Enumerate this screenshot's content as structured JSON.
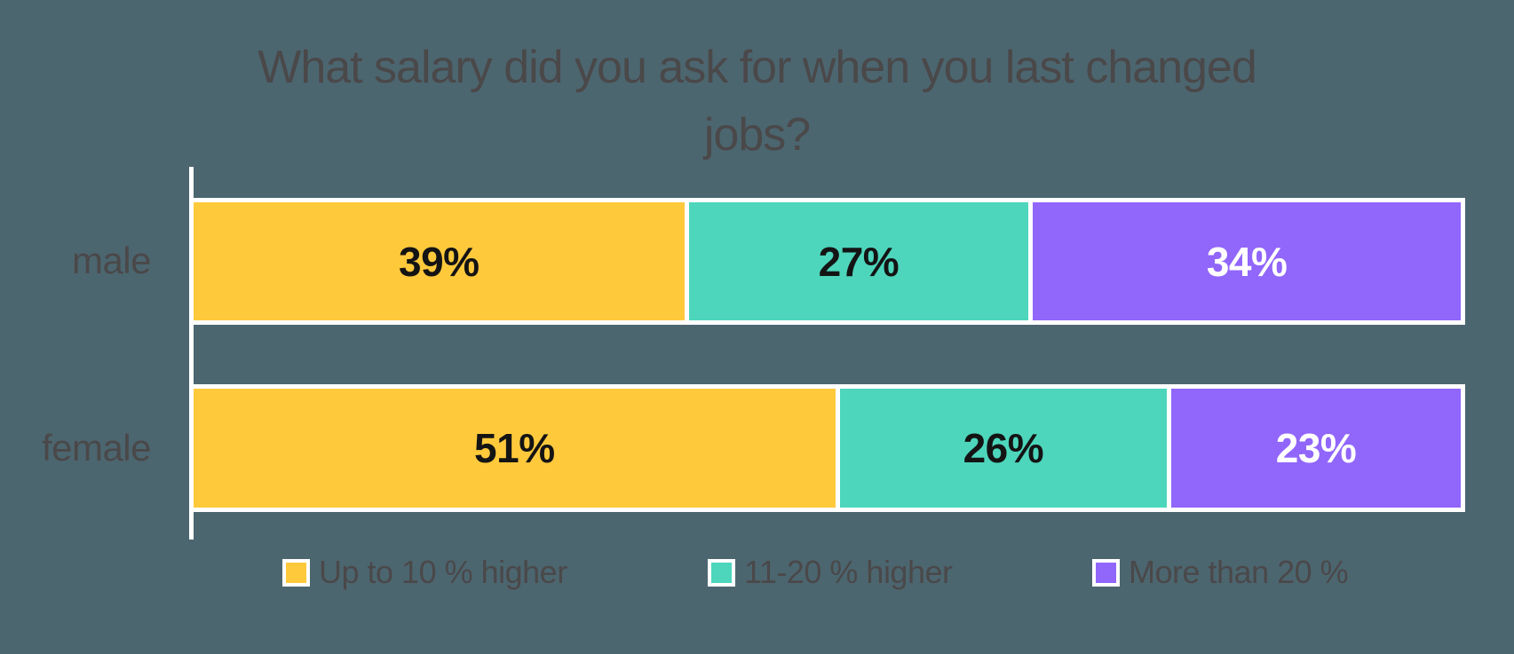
{
  "background_color": "#4C6670",
  "text_color": "#4A4849",
  "title": {
    "line1": "What salary did you ask for when you last changed",
    "line2": "jobs?"
  },
  "chart_data": {
    "type": "bar",
    "stacked": true,
    "orientation": "horizontal",
    "title": "What salary did you ask for when you last changed jobs?",
    "categories": [
      "male",
      "female"
    ],
    "series": [
      {
        "name": "Up to 10 % higher",
        "color": "#FFC93C",
        "label_color": "#141414",
        "values": [
          39,
          51
        ]
      },
      {
        "name": "11-20 % higher",
        "color": "#4DD6BC",
        "label_color": "#141414",
        "values": [
          27,
          26
        ]
      },
      {
        "name": "More than 20 %",
        "color": "#9166FA",
        "label_color": "#FFFFFF",
        "values": [
          34,
          23
        ]
      }
    ],
    "value_suffix": "%",
    "xlim": [
      0,
      100
    ],
    "grid": false,
    "data_labels": true,
    "legend_position": "bottom"
  },
  "legend": {
    "items": [
      {
        "label": "Up to 10 % higher",
        "color": "#FFC93C"
      },
      {
        "label": "11-20 % higher",
        "color": "#4DD6BC"
      },
      {
        "label": "More than 20 %",
        "color": "#9166FA"
      }
    ]
  }
}
